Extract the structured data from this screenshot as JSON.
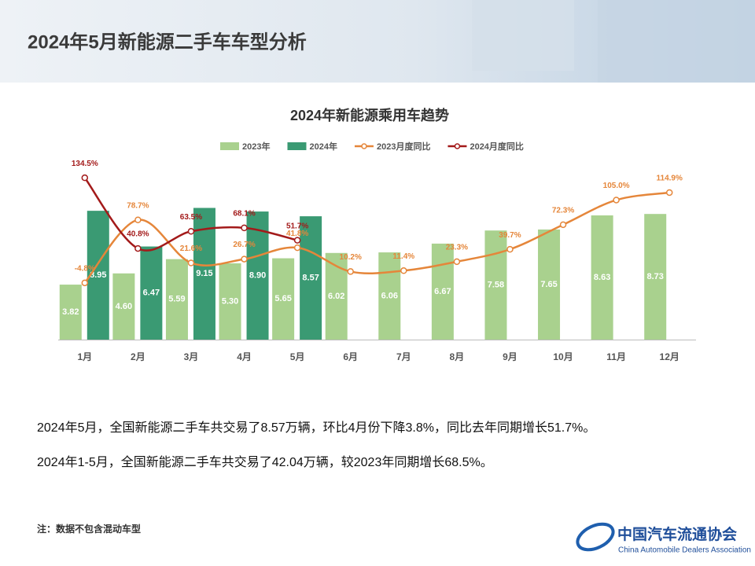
{
  "header": {
    "title": "2024年5月新能源二手车车型分析"
  },
  "chart_data": {
    "type": "bar",
    "title": "2024年新能源乘用车趋势",
    "categories": [
      "1月",
      "2月",
      "3月",
      "4月",
      "5月",
      "6月",
      "7月",
      "8月",
      "9月",
      "10月",
      "11月",
      "12月"
    ],
    "ylim": [
      0,
      13
    ],
    "y2lim": [
      -80,
      168
    ],
    "legend": "top",
    "series": [
      {
        "name": "2023年",
        "type": "bar",
        "color": "#a9d18e",
        "values": [
          3.82,
          4.6,
          5.59,
          5.3,
          5.65,
          6.02,
          6.06,
          6.67,
          7.58,
          7.65,
          8.63,
          8.73
        ],
        "value_labels": [
          "3.82",
          "4.60",
          "5.59",
          "5.30",
          "5.65",
          "6.02",
          "6.06",
          "6.67",
          "7.58",
          "7.65",
          "8.63",
          "8.73"
        ]
      },
      {
        "name": "2024年",
        "type": "bar",
        "color": "#3a9a73",
        "values": [
          8.95,
          6.47,
          9.15,
          8.9,
          8.57,
          null,
          null,
          null,
          null,
          null,
          null,
          null
        ],
        "value_labels": [
          "8.95",
          "6.47",
          "9.15",
          "8.90",
          "8.57",
          null,
          null,
          null,
          null,
          null,
          null,
          null
        ]
      },
      {
        "name": "2023月度同比",
        "type": "line",
        "axis": "y2",
        "color": "#e5863a",
        "values": [
          -4.8,
          78.7,
          21.6,
          26.7,
          41.8,
          10.2,
          11.4,
          23.3,
          39.7,
          72.3,
          105.0,
          114.9
        ],
        "value_labels": [
          "-4.8%",
          "78.7%",
          "21.6%",
          "26.7%",
          "41.8%",
          "10.2%",
          "11.4%",
          "23.3%",
          "39.7%",
          "72.3%",
          "105.0%",
          "114.9%"
        ]
      },
      {
        "name": "2024月度同比",
        "type": "line",
        "axis": "y2",
        "color": "#a31a1a",
        "values": [
          134.5,
          40.8,
          63.5,
          68.1,
          51.7,
          null,
          null,
          null,
          null,
          null,
          null,
          null
        ],
        "value_labels": [
          "134.5%",
          "40.8%",
          "63.5%",
          "68.1%",
          "51.7%",
          null,
          null,
          null,
          null,
          null,
          null,
          null
        ]
      }
    ]
  },
  "paragraphs": [
    "2024年5月，全国新能源二手车共交易了8.57万辆，环比4月份下降3.8%，同比去年同期增长51.7%。",
    "2024年1-5月，全国新能源二手车共交易了42.04万辆，较2023年同期增长68.5%。"
  ],
  "footnote": "注：数据不包含混动车型",
  "logo": {
    "name": "中国汽车流通协会",
    "english": "China Automobile Dealers Association"
  }
}
